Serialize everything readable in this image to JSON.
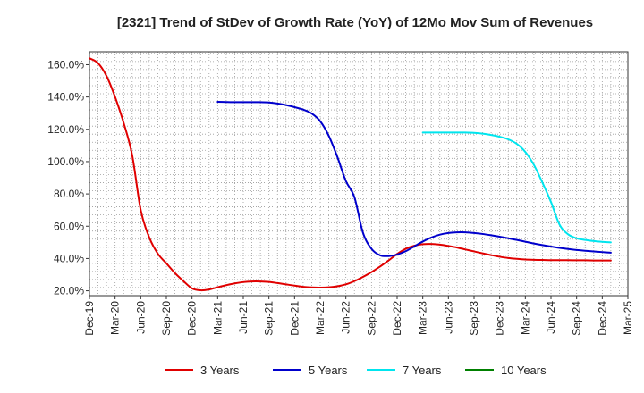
{
  "chart_data": {
    "type": "line",
    "title": "[2321]  Trend of StDev of Growth Rate (YoY) of 12Mo Mov Sum of Revenues",
    "xlabel": "",
    "ylabel": "",
    "y_unit": "%",
    "ylim": [
      17,
      168
    ],
    "y_ticks": [
      20,
      40,
      60,
      80,
      100,
      120,
      140,
      160
    ],
    "y_tick_labels": [
      "20.0%",
      "40.0%",
      "60.0%",
      "80.0%",
      "100.0%",
      "120.0%",
      "140.0%",
      "160.0%"
    ],
    "x_tick_labels": [
      "Dec-19",
      "Mar-20",
      "Jun-20",
      "Sep-20",
      "Dec-20",
      "Mar-21",
      "Jun-21",
      "Sep-21",
      "Dec-21",
      "Mar-22",
      "Jun-22",
      "Sep-22",
      "Dec-22",
      "Mar-23",
      "Jun-23",
      "Sep-23",
      "Dec-23",
      "Mar-24",
      "Jun-24",
      "Sep-24",
      "Dec-24",
      "Mar-25"
    ],
    "x_start_label": "Dec-19",
    "x_months_span": 63,
    "grid": true,
    "legend_position": "bottom",
    "series": [
      {
        "name": "3 Years",
        "color": "#e00000",
        "start_month": 0,
        "values": [
          164,
          161,
          153,
          140,
          124,
          104,
          70,
          53,
          43,
          37,
          31,
          26,
          21.5,
          20.3,
          20.8,
          22.2,
          23.5,
          24.6,
          25.4,
          25.8,
          25.8,
          25.5,
          24.8,
          24.0,
          23.2,
          22.5,
          22.1,
          22.0,
          22.2,
          22.8,
          24.0,
          26.0,
          28.6,
          31.6,
          35.0,
          38.8,
          42.8,
          46.0,
          47.9,
          48.9,
          49.0,
          48.6,
          47.8,
          46.8,
          45.6,
          44.4,
          43.2,
          42.1,
          41.1,
          40.3,
          39.8,
          39.4,
          39.2,
          39.1,
          39.0,
          39.0,
          39.0,
          38.9,
          38.9,
          38.8,
          38.8,
          38.8
        ]
      },
      {
        "name": "5 Years",
        "color": "#0000cc",
        "start_month": 15,
        "values": [
          137,
          136.9,
          136.8,
          136.8,
          136.8,
          136.8,
          136.6,
          136.0,
          135.0,
          133.7,
          132.2,
          129.8,
          125.0,
          116.0,
          103.0,
          88.0,
          78.0,
          56.0,
          46.0,
          42.0,
          41.5,
          42.5,
          44.5,
          47.5,
          50.5,
          53.0,
          54.8,
          55.8,
          56.2,
          56.2,
          55.8,
          55.2,
          54.4,
          53.5,
          52.5,
          51.5,
          50.4,
          49.3,
          48.3,
          47.4,
          46.6,
          45.9,
          45.3,
          44.8,
          44.4,
          44.0,
          43.6
        ]
      },
      {
        "name": "7 Years",
        "color": "#00e5ee",
        "start_month": 39,
        "values": [
          118,
          118,
          118,
          118,
          118,
          118,
          117.8,
          117.3,
          116.5,
          115.4,
          113.8,
          111.0,
          106.0,
          98.0,
          87.0,
          75.0,
          61.0,
          55.0,
          52.5,
          51.5,
          50.8,
          50.3,
          50.0
        ]
      },
      {
        "name": "10 Years",
        "color": "#008000",
        "start_month": 0,
        "values": []
      }
    ]
  }
}
